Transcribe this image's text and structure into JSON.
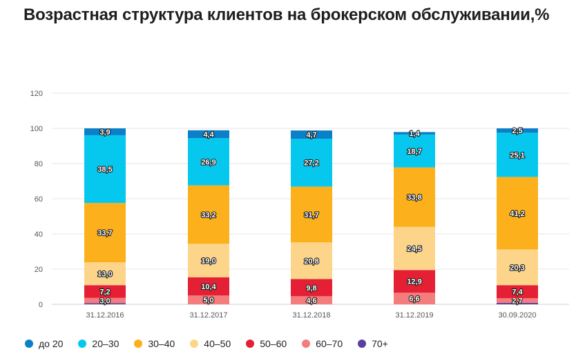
{
  "title": "Возрастная структура клиентов на брокерском обслуживании,%",
  "chart_data": {
    "type": "bar",
    "stacked": true,
    "title": "Возрастная структура клиентов на брокерском обслуживании,%",
    "xlabel": "",
    "ylabel": "",
    "ylim": [
      0,
      120
    ],
    "yticks": [
      0,
      20,
      40,
      60,
      80,
      100,
      120
    ],
    "grid": true,
    "legend_position": "bottom",
    "categories": [
      "31.12.2016",
      "31.12.2017",
      "31.12.2018",
      "31.12.2019",
      "30.09.2020"
    ],
    "series": [
      {
        "name": "70+",
        "color": "#5b3fa0",
        "values": [
          0.7,
          0.0,
          0.0,
          0.0,
          0.8
        ],
        "labels": [
          "",
          "",
          "",
          "",
          ""
        ]
      },
      {
        "name": "60–70",
        "color": "#f47c7c",
        "values": [
          3.0,
          5.0,
          4.6,
          6.6,
          2.7
        ],
        "labels": [
          "3,0",
          "5,0",
          "4,6",
          "6,6",
          "2,7"
        ]
      },
      {
        "name": "50–60",
        "color": "#e52035",
        "values": [
          7.2,
          10.4,
          9.8,
          12.9,
          7.4
        ],
        "labels": [
          "7,2",
          "10,4",
          "9,8",
          "12,9",
          "7,4"
        ]
      },
      {
        "name": "40–50",
        "color": "#fdd58a",
        "values": [
          13.0,
          19.0,
          20.8,
          24.5,
          20.3
        ],
        "labels": [
          "13,0",
          "19,0",
          "20,8",
          "24,5",
          "20,3"
        ]
      },
      {
        "name": "30–40",
        "color": "#fbb01c",
        "values": [
          33.7,
          33.2,
          31.7,
          33.8,
          41.2
        ],
        "labels": [
          "33,7",
          "33,2",
          "31,7",
          "33,8",
          "41,2"
        ]
      },
      {
        "name": "20–30",
        "color": "#06c8ef",
        "values": [
          38.5,
          26.9,
          27.2,
          18.7,
          25.1
        ],
        "labels": [
          "38,5",
          "26,9",
          "27,2",
          "18,7",
          "25,1"
        ]
      },
      {
        "name": "до 20",
        "color": "#0b7fc7",
        "values": [
          3.9,
          4.4,
          4.7,
          1.4,
          2.5
        ],
        "labels": [
          "3,9",
          "4,4",
          "4,7",
          "1,4",
          "2,5"
        ]
      }
    ]
  },
  "legend": [
    {
      "label": "до 20",
      "color": "#0b7fc7"
    },
    {
      "label": "20–30",
      "color": "#06c8ef"
    },
    {
      "label": "30–40",
      "color": "#fbb01c"
    },
    {
      "label": "40–50",
      "color": "#fdd58a"
    },
    {
      "label": "50–60",
      "color": "#e52035"
    },
    {
      "label": "60–70",
      "color": "#f47c7c"
    },
    {
      "label": "70+",
      "color": "#5b3fa0"
    }
  ]
}
